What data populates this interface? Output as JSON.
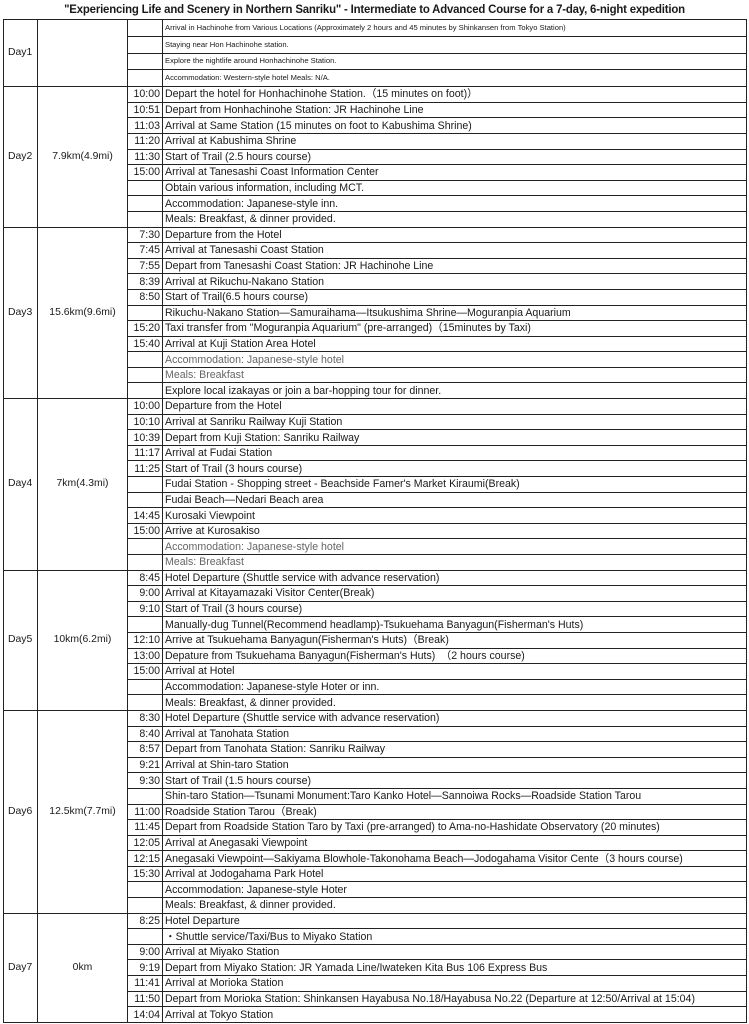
{
  "title": "\"Experiencing Life and Scenery in Northern Sanriku\" - Intermediate to Advanced Course for a 7-day, 6-night expedition",
  "days": [
    {
      "day": "Day1",
      "distance": "",
      "rows": [
        {
          "time": "",
          "text": "Arrival in Hachinohe from Various Locations (Approximately 2 hours and 45 minutes by Shinkansen from Tokyo Station)"
        },
        {
          "time": "",
          "text": "Staying near  Hon Hachinohe station."
        },
        {
          "time": "",
          "text": "Explore the nightlife around Honhachinohe Station."
        },
        {
          "time": "",
          "text": "Accommodation: Western-style hotel       Meals: N/A."
        }
      ]
    },
    {
      "day": "Day2",
      "distance": "7.9km(4.9mi)",
      "rows": [
        {
          "time": "10:00",
          "text": "Depart the hotel for Honhachinohe Station.（15 minutes on foot)）"
        },
        {
          "time": "10:51",
          "text": "Depart from Honhachinohe Station: JR Hachinohe Line"
        },
        {
          "time": "11:03",
          "text": "Arrival at Same Station (15 minutes on foot to Kabushima Shrine)"
        },
        {
          "time": "11:20",
          "text": "Arrival at Kabushima Shrine"
        },
        {
          "time": "11:30",
          "text": "Start of Trail (2.5 hours course)"
        },
        {
          "time": "15:00",
          "text": "Arrival at Tanesashi Coast Information Center"
        },
        {
          "time": "",
          "text": "Obtain various information, including MCT."
        },
        {
          "time": "",
          "text": "Accommodation: Japanese-style inn."
        },
        {
          "time": "",
          "text": "Meals: Breakfast, & dinner provided."
        }
      ]
    },
    {
      "day": "Day3",
      "distance": "15.6km(9.6mi)",
      "rows": [
        {
          "time": "7:30",
          "text": "Departure from the Hotel"
        },
        {
          "time": "7:45",
          "text": "Arrival at Tanesashi Coast Station"
        },
        {
          "time": "7:55",
          "text": "Depart from Tanesashi Coast Station: JR Hachinohe Line"
        },
        {
          "time": "8:39",
          "text": "Arrival at Rikuchu-Nakano Station"
        },
        {
          "time": "8:50",
          "text": "Start of Trail(6.5 hours course)"
        },
        {
          "time": "",
          "text": "Rikuchu-Nakano Station—Samuraihama—Itsukushima Shrine—Moguranpia Aquarium"
        },
        {
          "time": "15:20",
          "text": "Taxi transfer from \"Moguranpia Aquarium\" (pre-arranged)（15minutes by Taxi)"
        },
        {
          "time": "15:40",
          "text": "Arrival at Kuji Station Area Hotel"
        },
        {
          "time": "",
          "text": "Accommodation: Japanese-style hotel",
          "muted": true
        },
        {
          "time": "",
          "text": "Meals: Breakfast",
          "muted": true
        },
        {
          "time": "",
          "text": "Explore local izakayas or join a bar-hopping tour for dinner."
        }
      ]
    },
    {
      "day": "Day4",
      "distance": "7km(4.3mi)",
      "rows": [
        {
          "time": "10:00",
          "text": "Departure from the Hotel"
        },
        {
          "time": "10:10",
          "text": "Arrival at Sanriku Railway Kuji Station"
        },
        {
          "time": "10:39",
          "text": "Depart from Kuji Station: Sanriku Railway"
        },
        {
          "time": "11:17",
          "text": "Arrival at Fudai Station"
        },
        {
          "time": "11:25",
          "text": "Start of Trail (3 hours course)"
        },
        {
          "time": "",
          "text": "Fudai Station - Shopping street - Beachside Famer's Market Kiraumi(Break)"
        },
        {
          "time": "",
          "text": "Fudai Beach—Nedari Beach area"
        },
        {
          "time": "14:45",
          "text": "Kurosaki Viewpoint"
        },
        {
          "time": "15:00",
          "text": "Arrive at Kurosakiso"
        },
        {
          "time": "",
          "text": "Accommodation: Japanese-style hotel",
          "muted": true
        },
        {
          "time": "",
          "text": "Meals: Breakfast",
          "muted": true
        }
      ]
    },
    {
      "day": "Day5",
      "distance": "10km(6.2mi)",
      "rows": [
        {
          "time": "8:45",
          "text": "Hotel Departure (Shuttle service with advance reservation)"
        },
        {
          "time": "9:00",
          "text": "Arrival at Kitayamazaki Visitor Center(Break)"
        },
        {
          "time": "9:10",
          "text": "Start of Trail (3 hours course)"
        },
        {
          "time": "",
          "text": "Manually-dug Tunnel(Recommend headlamp)-Tsukuehama Banyagun(Fisherman's Huts)"
        },
        {
          "time": "12:10",
          "text": "Arrive at Tsukuehama Banyagun(Fisherman's Huts)（Break)"
        },
        {
          "time": "13:00",
          "text": "Depature from Tsukuehama Banyagun(Fisherman's Huts)　（2 hours course)"
        },
        {
          "time": "15:00",
          "text": "Arrival at Hotel"
        },
        {
          "time": "",
          "text": "Accommodation: Japanese-style Hoter or inn."
        },
        {
          "time": "",
          "text": "Meals: Breakfast, & dinner provided."
        }
      ]
    },
    {
      "day": "Day6",
      "distance": "12.5km(7.7mi)",
      "rows": [
        {
          "time": "8:30",
          "text": "Hotel Departure (Shuttle service with advance reservation)"
        },
        {
          "time": "8:40",
          "text": "Arrival at Tanohata Station"
        },
        {
          "time": "8:57",
          "text": "Depart from Tanohata Station: Sanriku Railway"
        },
        {
          "time": "9:21",
          "text": "Arrival at Shin-taro Station"
        },
        {
          "time": "9:30",
          "text": "Start of Trail (1.5 hours course)"
        },
        {
          "time": "",
          "text": "Shin-taro Station—Tsunami Monument:Taro Kanko Hotel—Sannoiwa Rocks—Roadside Station Tarou"
        },
        {
          "time": "11:00",
          "text": "Roadside Station Tarou（Break)"
        },
        {
          "time": "11:45",
          "text": "Depart from Roadside Station Taro by Taxi (pre-arranged) to Ama-no-Hashidate Observatory (20 minutes)"
        },
        {
          "time": "12:05",
          "text": "Arrival at Anegasaki Viewpoint"
        },
        {
          "time": "12:15",
          "text": "Anegasaki Viewpoint—Sakiyama Blowhole-Takonohama Beach—Jodogahama Visitor Cente（3 hours course)"
        },
        {
          "time": "15:30",
          "text": "Arrival at Jodogahama Park Hotel"
        },
        {
          "time": "",
          "text": "Accommodation: Japanese-style Hoter"
        },
        {
          "time": "",
          "text": "Meals: Breakfast, & dinner provided."
        }
      ]
    },
    {
      "day": "Day7",
      "distance": "0km",
      "rows": [
        {
          "time": "8:25",
          "text": "Hotel Departure"
        },
        {
          "time": "",
          "text": "・Shuttle service/Taxi/Bus to Miyako Station"
        },
        {
          "time": "9:00",
          "text": "Arrival at Miyako Station"
        },
        {
          "time": "9:19",
          "text": "Depart from Miyako Station: JR Yamada Line/Iwateken Kita Bus 106 Express Bus"
        },
        {
          "time": "11:41",
          "text": "Arrival at Morioka Station"
        },
        {
          "time": "11:50",
          "text": "Depart from Morioka Station: Shinkansen Hayabusa No.18/Hayabusa No.22 (Departure at 12:50/Arrival at 15:04)"
        },
        {
          "time": "14:04",
          "text": "Arrival at Tokyo Station"
        }
      ]
    }
  ]
}
